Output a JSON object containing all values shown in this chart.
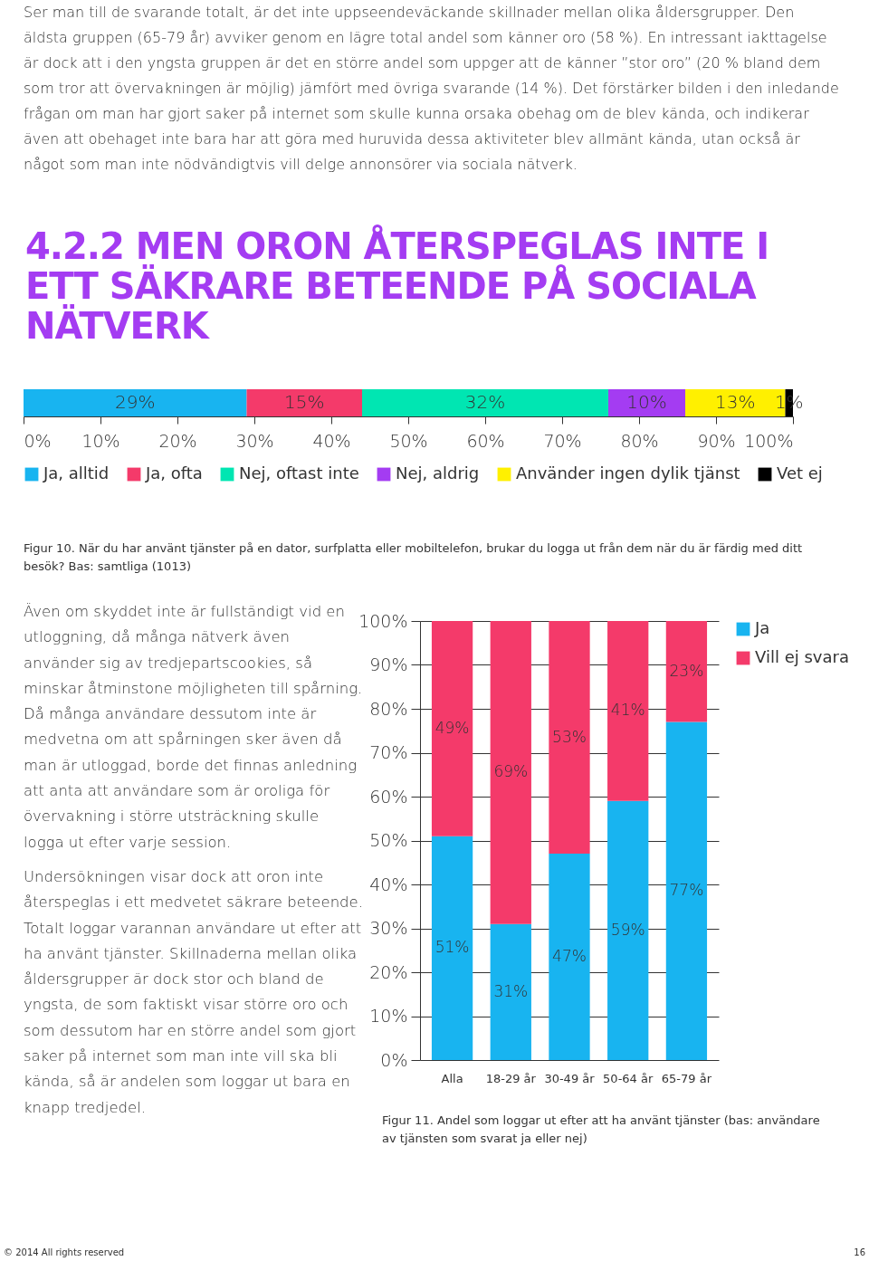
{
  "chart_data": [
    {
      "type": "bar",
      "orientation": "horizontal",
      "stacked": true,
      "title": "4.2.2 MEN ORON ÅTERSPEGLAS INTE I ETT SÄKRARE BETEENDE PÅ SOCIALA NÄTVERK",
      "categories": [
        null
      ],
      "tick_labels": "x",
      "legend": "bottom",
      "grid": false,
      "xlim": [
        0,
        100
      ],
      "xticks": [
        {
          "value": 0,
          "label": "0%"
        },
        {
          "value": 10,
          "label": "10%"
        },
        {
          "value": 20,
          "label": "20%"
        },
        {
          "value": 30,
          "label": "30%"
        },
        {
          "value": 40,
          "label": "40%"
        },
        {
          "value": 50,
          "label": "50%"
        },
        {
          "value": 60,
          "label": "60%"
        },
        {
          "value": 70,
          "label": "70%"
        },
        {
          "value": 80,
          "label": "80%"
        },
        {
          "value": 90,
          "label": "90%"
        },
        {
          "value": 100,
          "label": "100%"
        }
      ],
      "series": [
        {
          "name": "Ja, alltid",
          "color": "#18b4f0",
          "values": [
            29
          ],
          "value_labels": [
            "29%"
          ]
        },
        {
          "name": "Ja, ofta",
          "color": "#f43a6a",
          "values": [
            15
          ],
          "value_labels": [
            "15%"
          ]
        },
        {
          "name": "Nej, oftast inte",
          "color": "#00e6b2",
          "values": [
            32
          ],
          "value_labels": [
            "32%"
          ]
        },
        {
          "name": "Nej, aldrig",
          "color": "#a43cf2",
          "values": [
            10
          ],
          "value_labels": [
            "10%"
          ]
        },
        {
          "name": "Använder ingen dylik tjänst",
          "color": "#fff000",
          "values": [
            13
          ],
          "value_labels": [
            "13%"
          ]
        },
        {
          "name": "Vet ej",
          "color": "#000000",
          "values": [
            1
          ],
          "value_labels": [
            "1%"
          ]
        }
      ],
      "annotations": [
        "Ser man till de svarande totalt, är det inte uppseendeväckande skillnader mellan olika åldersgrupper. Den äldsta gruppen (65-79 år) avviker genom en lägre total andel som känner oro (58 %). En intressant iakttagelse är dock att i den yngsta gruppen är det en större andel som uppger att de känner ”stor oro” (20 % bland dem som tror att övervakningen är möjlig) jämfört med övriga svarande (14 %). Det förstärker bilden i den inledande frågan om man har gjort saker på internet som skulle kunna orsaka obehag om de blev kända, och indikerar även att obehaget inte bara har att göra med huruvida dessa aktiviteter blev allmänt kända, utan också är något som man inte nödvändigtvis vill delge annonsörer via sociala nätverk.",
        "Figur 10. När du har använt tjänster på en dator, surfplatta eller mobiltelefon, brukar du logga ut från dem när du är färdig med ditt besök? Bas: samtliga (1013)"
      ]
    },
    {
      "type": "bar",
      "stacked": true,
      "categories": [
        "Alla",
        "18-29 år",
        "30-49 år",
        "50-64 år",
        "65-79 år"
      ],
      "legend": "right",
      "grid": "y",
      "ylim": [
        0,
        100
      ],
      "yticks": [
        {
          "value": 0,
          "label": "0%"
        },
        {
          "value": 10,
          "label": "10%"
        },
        {
          "value": 20,
          "label": "20%"
        },
        {
          "value": 30,
          "label": "30%"
        },
        {
          "value": 40,
          "label": "40%"
        },
        {
          "value": 50,
          "label": "50%"
        },
        {
          "value": 60,
          "label": "60%"
        },
        {
          "value": 70,
          "label": "70%"
        },
        {
          "value": 80,
          "label": "80%"
        },
        {
          "value": 90,
          "label": "90%"
        },
        {
          "value": 100,
          "label": "100%"
        }
      ],
      "series": [
        {
          "name": "Ja",
          "color": "#18b4f0",
          "values": [
            51,
            31,
            47,
            59,
            77
          ],
          "value_labels": [
            "51%",
            "31%",
            "47%",
            "59%",
            "77%"
          ]
        },
        {
          "name": "Vill ej svara",
          "color": "#f43a6a",
          "values": [
            49,
            69,
            53,
            41,
            23
          ],
          "value_labels": [
            "49%",
            "69%",
            "53%",
            "41%",
            "23%"
          ]
        }
      ],
      "annotations": [
        "Även om skyddet inte är fullständigt vid en utloggning, då många nätverk även använder sig av tredjepartscookies, så minskar åtminstone möjligheten till spårning. Då många användare dessutom inte är medvetna om att spårningen sker även då man är utloggad, borde det finnas anledning att anta att användare som är oroliga för övervakning i större utsträckning skulle logga ut efter varje session.",
        "Undersökningen visar dock att oron inte återspeglas i ett medvetet säkrare beteende. Totalt loggar varannan användare ut efter att ha använt tjänster. Skillnaderna mellan olika åldersgrupper är dock stor och bland de yngsta, de som faktiskt visar större oro och som dessutom har en större andel som gjort saker på internet som man inte vill ska bli kända, så är andelen som loggar ut bara en knapp tredjedel.",
        "Figur 11. Andel som loggar ut efter att ha använt tjänster (bas: användare av tjänsten som svarat ja eller nej)",
        "© 2014 All rights reserved",
        "16"
      ]
    }
  ]
}
